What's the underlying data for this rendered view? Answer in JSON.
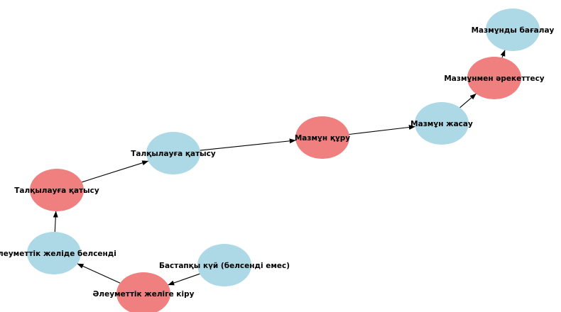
{
  "colors": {
    "state_blue": "#add8e6",
    "state_red": "#f08080",
    "edge": "#000000",
    "background": "#ffffff"
  },
  "nodes": [
    {
      "id": "initial",
      "label": "Бастапқы күй (белсенді емес)",
      "color": "state_blue"
    },
    {
      "id": "join",
      "label": "Әлеуметтік желіге кіру",
      "color": "state_red"
    },
    {
      "id": "active",
      "label": "Әлеуметтік желіде белсенді",
      "color": "state_blue"
    },
    {
      "id": "discuss_red",
      "label": "Талқылауға қатысу",
      "color": "state_red"
    },
    {
      "id": "discuss_blue",
      "label": "Талқылауға қатысу",
      "color": "state_blue"
    },
    {
      "id": "build",
      "label": "Мазмұн құру",
      "color": "state_red"
    },
    {
      "id": "create",
      "label": "Мазмұн жасау",
      "color": "state_blue"
    },
    {
      "id": "interact",
      "label": "Мазмұнмен әрекеттесу",
      "color": "state_red"
    },
    {
      "id": "evaluate",
      "label": "Мазмұнды бағалау",
      "color": "state_blue"
    }
  ],
  "edges": [
    {
      "from": "initial",
      "to": "join"
    },
    {
      "from": "join",
      "to": "active"
    },
    {
      "from": "active",
      "to": "discuss_red"
    },
    {
      "from": "discuss_red",
      "to": "discuss_blue"
    },
    {
      "from": "discuss_blue",
      "to": "build"
    },
    {
      "from": "build",
      "to": "create"
    },
    {
      "from": "create",
      "to": "interact"
    },
    {
      "from": "interact",
      "to": "evaluate"
    }
  ]
}
